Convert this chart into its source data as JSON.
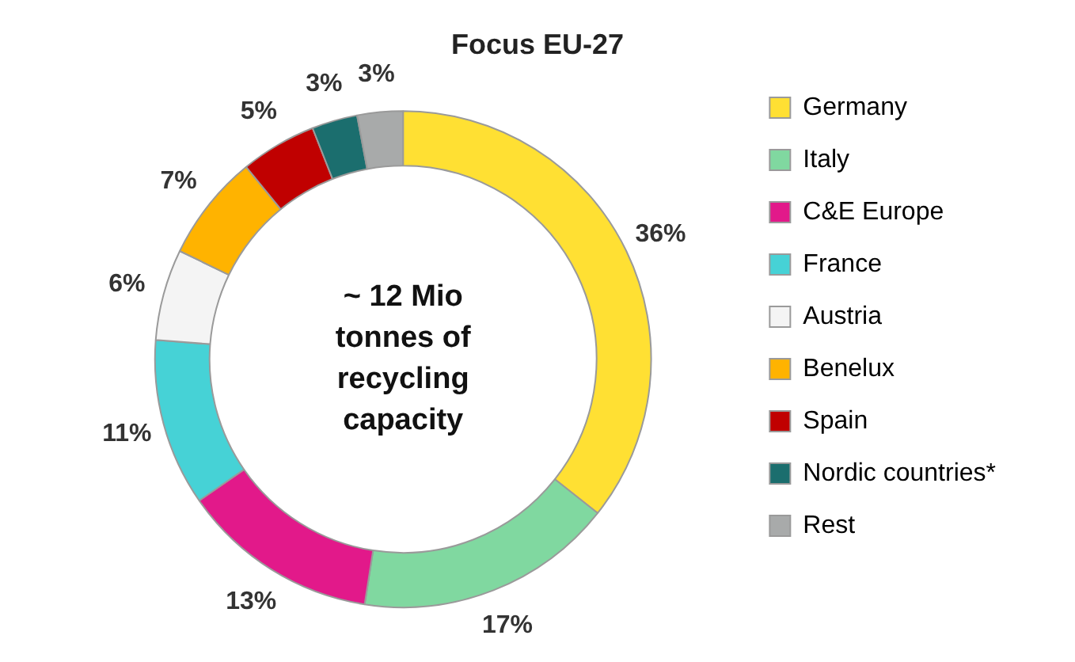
{
  "chart_data": {
    "type": "donut",
    "title": "Focus EU-27",
    "categories": [
      "Germany",
      "Italy",
      "C&E Europe",
      "France",
      "Austria",
      "Benelux",
      "Spain",
      "Nordic countries*",
      "Rest"
    ],
    "values": [
      36,
      17,
      13,
      11,
      6,
      7,
      5,
      3,
      3
    ],
    "value_labels": [
      "36%",
      "17%",
      "13%",
      "11%",
      "6%",
      "7%",
      "5%",
      "3%",
      "3%"
    ],
    "colors": [
      "#ffe033",
      "#80d8a0",
      "#e2198a",
      "#46d2d6",
      "#f4f4f4",
      "#ffb300",
      "#c00000",
      "#1b6e6e",
      "#a8aaaa"
    ],
    "annotations": [
      "~ 12 Mio tonnes of recycling capacity"
    ],
    "legend": "right"
  }
}
